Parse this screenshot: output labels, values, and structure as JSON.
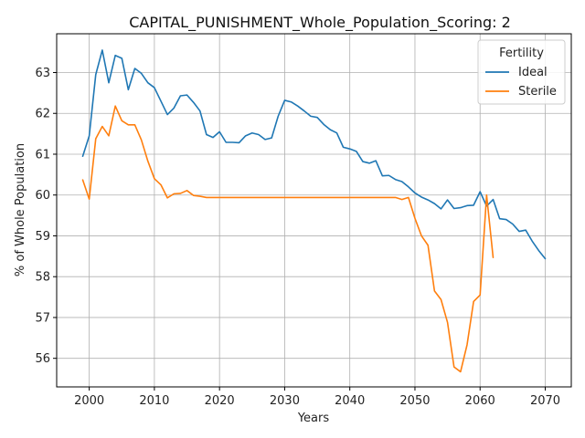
{
  "chart_data": {
    "type": "line",
    "title": "CAPITAL_PUNISHMENT_Whole_Population_Scoring: 2",
    "xlabel": "Years",
    "ylabel": "% of Whole Population",
    "xlim": [
      1995,
      2074
    ],
    "ylim": [
      55.3,
      63.95
    ],
    "xticks": [
      2000,
      2010,
      2020,
      2030,
      2040,
      2050,
      2060,
      2070
    ],
    "yticks": [
      56,
      57,
      58,
      59,
      60,
      61,
      62,
      63
    ],
    "grid": true,
    "legend": {
      "title": "Fertility",
      "position": "top-right"
    },
    "series": [
      {
        "name": "Ideal",
        "color": "#1f77b4",
        "x": [
          1999,
          2000,
          2001,
          2002,
          2003,
          2004,
          2005,
          2006,
          2007,
          2008,
          2009,
          2010,
          2011,
          2012,
          2013,
          2014,
          2015,
          2016,
          2017,
          2018,
          2019,
          2020,
          2021,
          2022,
          2023,
          2024,
          2025,
          2026,
          2027,
          2028,
          2029,
          2030,
          2031,
          2032,
          2033,
          2034,
          2035,
          2036,
          2037,
          2038,
          2039,
          2040,
          2041,
          2042,
          2043,
          2044,
          2045,
          2046,
          2047,
          2048,
          2049,
          2050,
          2051,
          2052,
          2053,
          2054,
          2055,
          2056,
          2057,
          2058,
          2059,
          2060,
          2061,
          2062,
          2063,
          2064,
          2065,
          2066,
          2067,
          2068,
          2069,
          2070
        ],
        "y": [
          60.95,
          61.45,
          62.95,
          63.55,
          62.75,
          63.42,
          63.35,
          62.58,
          63.1,
          62.98,
          62.75,
          62.63,
          62.3,
          61.97,
          62.13,
          62.43,
          62.45,
          62.27,
          62.06,
          61.48,
          61.41,
          61.55,
          61.29,
          61.29,
          61.28,
          61.45,
          61.52,
          61.48,
          61.36,
          61.4,
          61.93,
          62.32,
          62.28,
          62.18,
          62.06,
          61.93,
          61.9,
          61.73,
          61.6,
          61.52,
          61.17,
          61.13,
          61.07,
          60.82,
          60.78,
          60.84,
          60.47,
          60.48,
          60.38,
          60.33,
          60.2,
          60.05,
          59.95,
          59.88,
          59.79,
          59.66,
          59.88,
          59.67,
          59.69,
          59.74,
          59.75,
          60.08,
          59.73,
          59.89,
          59.42,
          59.4,
          59.29,
          59.11,
          59.14,
          58.87,
          58.64,
          58.44
        ]
      },
      {
        "name": "Sterile",
        "color": "#ff7f0e",
        "x": [
          1999,
          2000,
          2001,
          2002,
          2003,
          2004,
          2005,
          2006,
          2007,
          2008,
          2009,
          2010,
          2011,
          2012,
          2013,
          2014,
          2015,
          2016,
          2017,
          2018,
          2019,
          2020,
          2021,
          2022,
          2023,
          2024,
          2025,
          2026,
          2027,
          2028,
          2029,
          2030,
          2031,
          2032,
          2033,
          2034,
          2035,
          2036,
          2037,
          2038,
          2039,
          2040,
          2041,
          2042,
          2043,
          2044,
          2045,
          2046,
          2047,
          2048,
          2049,
          2050,
          2051,
          2052,
          2053,
          2054,
          2055,
          2056,
          2057,
          2058,
          2059,
          2060,
          2061,
          2062
        ],
        "y": [
          60.37,
          59.9,
          61.38,
          61.68,
          61.45,
          62.18,
          61.82,
          61.72,
          61.72,
          61.35,
          60.83,
          60.4,
          60.25,
          59.93,
          60.03,
          60.04,
          60.11,
          59.99,
          59.97,
          59.94,
          59.94,
          59.94,
          59.94,
          59.94,
          59.94,
          59.94,
          59.94,
          59.94,
          59.94,
          59.94,
          59.94,
          59.94,
          59.94,
          59.94,
          59.94,
          59.94,
          59.94,
          59.94,
          59.94,
          59.94,
          59.94,
          59.94,
          59.94,
          59.94,
          59.94,
          59.94,
          59.94,
          59.94,
          59.94,
          59.89,
          59.94,
          59.43,
          59.0,
          58.77,
          57.65,
          57.44,
          56.88,
          55.79,
          55.67,
          56.33,
          57.39,
          57.55,
          60.0,
          58.47
        ]
      }
    ]
  }
}
